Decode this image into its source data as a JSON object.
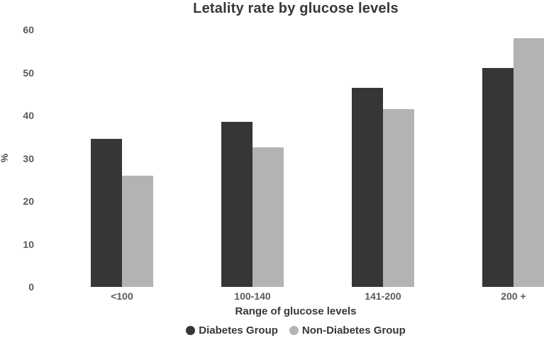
{
  "chart_data": {
    "type": "bar",
    "title": "Letality rate by glucose levels",
    "xlabel": "Range of glucose levels",
    "ylabel": "%",
    "categories": [
      "<100",
      "100-140",
      "141-200",
      "200 +"
    ],
    "series": [
      {
        "name": "Diabetes Group",
        "color": "#363636",
        "values": [
          34.5,
          38.5,
          46.5,
          51
        ]
      },
      {
        "name": "Non-Diabetes Group",
        "color": "#b3b3b3",
        "values": [
          26,
          32.5,
          41.5,
          58
        ]
      }
    ],
    "ylim": [
      0,
      60
    ],
    "yticks": [
      0,
      10,
      20,
      30,
      40,
      50,
      60
    ],
    "grid": false,
    "axis_lines": false,
    "legend_position": "bottom",
    "background_color": "#ffffff"
  }
}
